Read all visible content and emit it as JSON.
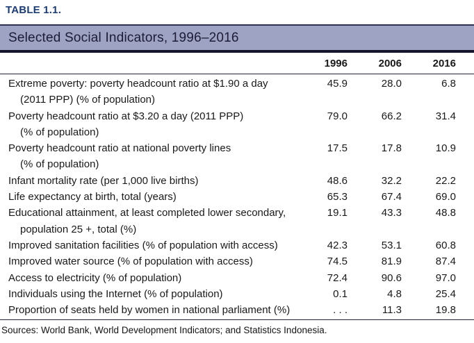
{
  "table_label": "TABLE 1.1.",
  "title": "Selected Social Indicators, 1996–2016",
  "columns": [
    "1996",
    "2006",
    "2016"
  ],
  "rows": [
    {
      "line1": "Extreme poverty: poverty headcount ratio at $1.90 a day",
      "line2": "(2011 PPP) (% of population)",
      "values": [
        "45.9",
        "28.0",
        "6.8"
      ]
    },
    {
      "line1": "Poverty headcount ratio at $3.20 a day (2011 PPP)",
      "line2": "(% of population)",
      "values": [
        "79.0",
        "66.2",
        "31.4"
      ]
    },
    {
      "line1": "Poverty headcount ratio at national poverty lines",
      "line2": "(% of population)",
      "values": [
        "17.5",
        "17.8",
        "10.9"
      ]
    },
    {
      "line1": "Infant mortality rate (per 1,000 live births)",
      "line2": "",
      "values": [
        "48.6",
        "32.2",
        "22.2"
      ]
    },
    {
      "line1": "Life expectancy at birth, total (years)",
      "line2": "",
      "values": [
        "65.3",
        "67.4",
        "69.0"
      ]
    },
    {
      "line1": "Educational attainment, at least completed lower secondary,",
      "line2": "population 25 +, total (%)",
      "values": [
        "19.1",
        "43.3",
        "48.8"
      ]
    },
    {
      "line1": "Improved sanitation facilities (% of population with access)",
      "line2": "",
      "values": [
        "42.3",
        "53.1",
        "60.8"
      ]
    },
    {
      "line1": "Improved water source (% of population with access)",
      "line2": "",
      "values": [
        "74.5",
        "81.9",
        "87.4"
      ]
    },
    {
      "line1": "Access to electricity (% of population)",
      "line2": "",
      "values": [
        "72.4",
        "90.6",
        "97.0"
      ]
    },
    {
      "line1": "Individuals using the Internet (% of population)",
      "line2": "",
      "values": [
        "0.1",
        "4.8",
        "25.4"
      ]
    },
    {
      "line1": "Proportion of seats held by women in national parliament (%)",
      "line2": "",
      "values": [
        ". . .",
        "11.3",
        "19.8"
      ]
    }
  ],
  "source": "Sources: World Bank, World Development Indicators; and Statistics Indonesia.",
  "colors": {
    "banner_background": "#9ea2c3",
    "label_navy": "#1b3d73",
    "rule_dark": "#16162b",
    "body_text": "#191919"
  }
}
